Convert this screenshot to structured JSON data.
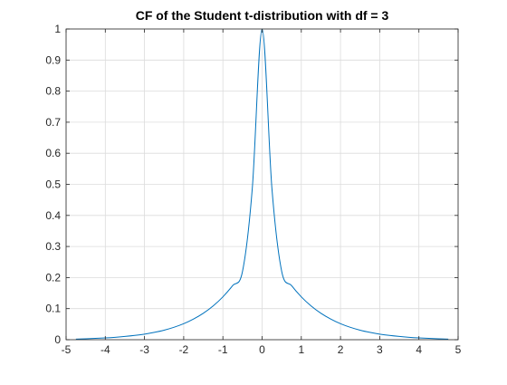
{
  "chart_data": {
    "type": "line",
    "title": "CF of the Student t-distribution with df = 3",
    "xlabel": "",
    "ylabel": "",
    "xlim": [
      -5,
      5
    ],
    "ylim": [
      0,
      1
    ],
    "grid": true,
    "legend": "none",
    "x_ticks": [
      -5,
      -4,
      -3,
      -2,
      -1,
      0,
      1,
      2,
      3,
      4,
      5
    ],
    "y_ticks": [
      0,
      0.1,
      0.2,
      0.3,
      0.4,
      0.5,
      0.6,
      0.7,
      0.8,
      0.9,
      1
    ],
    "x_tick_labels": [
      "-5",
      "-4",
      "-3",
      "-2",
      "-1",
      "0",
      "1",
      "2",
      "3",
      "4",
      "5"
    ],
    "y_tick_labels": [
      "0",
      "0.1",
      "0.2",
      "0.3",
      "0.4",
      "0.5",
      "0.6",
      "0.7",
      "0.8",
      "0.9",
      "1"
    ],
    "colors": {
      "line": "#0072bd",
      "grid": "#dcdcdc",
      "axis": "#262626",
      "background": "#ffffff"
    },
    "series": [
      {
        "x": [
          -4.75,
          -4.5,
          -4.25,
          -4,
          -3.75,
          -3.5,
          -3.25,
          -3,
          -2.75,
          -2.5,
          -2.25,
          -2,
          -1.75,
          -1.5,
          -1.25,
          -1,
          -0.75,
          -0.5,
          -0.25,
          0,
          0.25,
          0.5,
          0.75,
          1,
          1.25,
          1.5,
          1.75,
          2,
          2.25,
          2.5,
          2.75,
          3,
          3.25,
          3.5,
          3.75,
          4,
          4.25,
          4.5,
          4.75
        ],
        "y": [
          0.0019,
          0.0031,
          0.0043,
          0.0058,
          0.0078,
          0.0104,
          0.0137,
          0.018,
          0.0236,
          0.0307,
          0.0399,
          0.0515,
          0.0664,
          0.085,
          0.1085,
          0.138,
          0.1744,
          0.2197,
          0.4875,
          1.0,
          0.4875,
          0.2197,
          0.1744,
          0.138,
          0.1085,
          0.085,
          0.0664,
          0.0515,
          0.0399,
          0.0307,
          0.0236,
          0.018,
          0.0137,
          0.0104,
          0.0078,
          0.0058,
          0.0043,
          0.0031,
          0.0019
        ]
      }
    ]
  }
}
